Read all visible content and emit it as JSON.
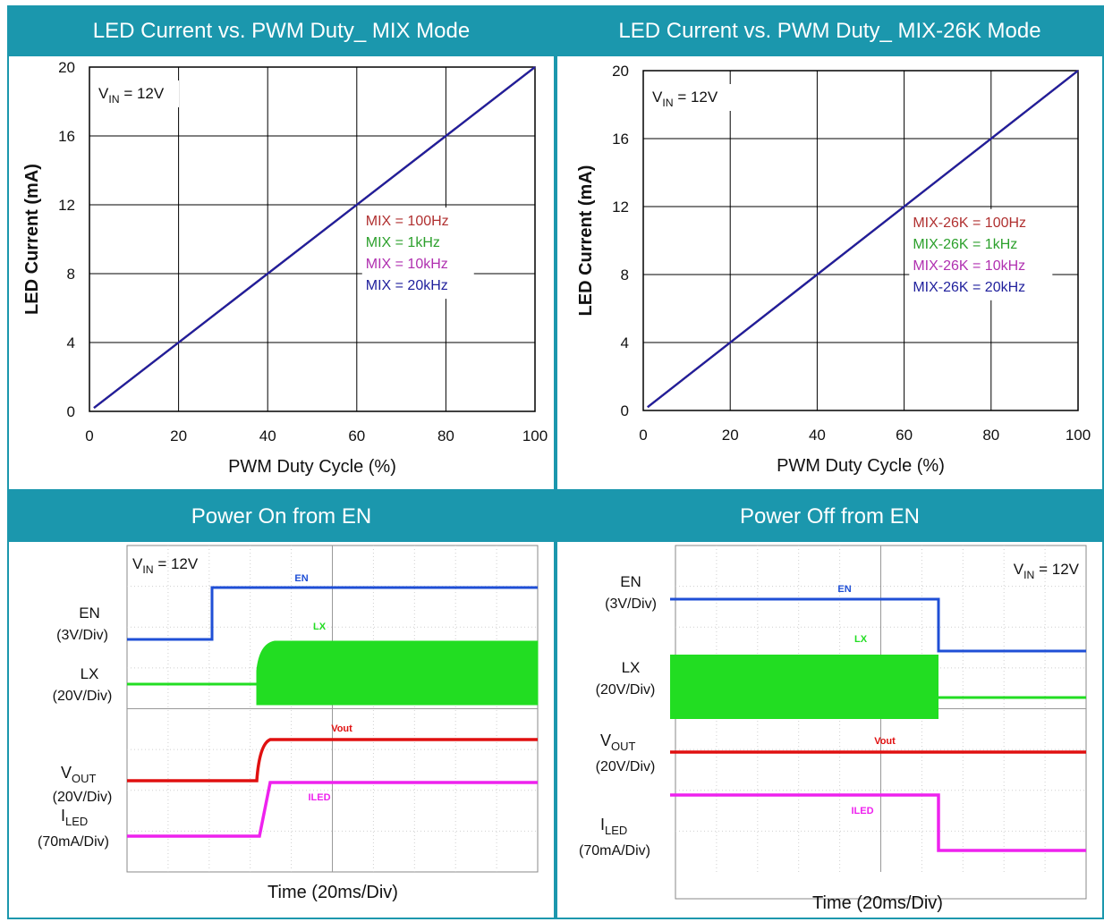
{
  "panels": {
    "tl": {
      "title": "LED Current vs. PWM Duty_ MIX Mode"
    },
    "tr": {
      "title": "LED Current vs. PWM Duty_ MIX-26K Mode"
    },
    "bl": {
      "title": "Power On from EN"
    },
    "br": {
      "title": "Power Off from EN"
    }
  },
  "chart_data": [
    {
      "type": "line",
      "title": "LED Current vs. PWM Duty_ MIX Mode",
      "xlabel": "PWM Duty Cycle (%)",
      "ylabel": "LED Current (mA)",
      "xlim": [
        0,
        100
      ],
      "ylim": [
        0,
        20
      ],
      "xticks": [
        0,
        20,
        40,
        60,
        80,
        100
      ],
      "yticks": [
        0,
        4,
        8,
        12,
        16,
        20
      ],
      "grid": true,
      "annotation": {
        "main": "V",
        "sub": "IN",
        "rest": " = 12V"
      },
      "legend_placement": "center-right",
      "series": [
        {
          "name": "MIX = 100Hz",
          "color": "#b03030",
          "x": [
            1,
            100
          ],
          "y": [
            0.2,
            20
          ]
        },
        {
          "name": "MIX = 1kHz",
          "color": "#2ca02c",
          "x": [
            1,
            100
          ],
          "y": [
            0.2,
            20
          ]
        },
        {
          "name": "MIX = 10kHz",
          "color": "#b030b0",
          "x": [
            1,
            100
          ],
          "y": [
            0.2,
            20
          ]
        },
        {
          "name": "MIX = 20kHz",
          "color": "#1f1f9c",
          "x": [
            1,
            100
          ],
          "y": [
            0.2,
            20
          ]
        }
      ]
    },
    {
      "type": "line",
      "title": "LED Current vs. PWM Duty_ MIX-26K Mode",
      "xlabel": "PWM Duty Cycle (%)",
      "ylabel": "LED Current (mA)",
      "xlim": [
        0,
        100
      ],
      "ylim": [
        0,
        20
      ],
      "xticks": [
        0,
        20,
        40,
        60,
        80,
        100
      ],
      "yticks": [
        0,
        4,
        8,
        12,
        16,
        20
      ],
      "grid": true,
      "annotation": {
        "main": "V",
        "sub": "IN",
        "rest": " = 12V"
      },
      "legend_placement": "center-right",
      "series": [
        {
          "name": "MIX-26K = 100Hz",
          "color": "#b03030",
          "x": [
            1,
            100
          ],
          "y": [
            0.2,
            20
          ]
        },
        {
          "name": "MIX-26K = 1kHz",
          "color": "#2ca02c",
          "x": [
            1,
            100
          ],
          "y": [
            0.2,
            20
          ]
        },
        {
          "name": "MIX-26K = 10kHz",
          "color": "#b030b0",
          "x": [
            1,
            100
          ],
          "y": [
            0.2,
            20
          ]
        },
        {
          "name": "MIX-26K = 20kHz",
          "color": "#1f1f9c",
          "x": [
            1,
            100
          ],
          "y": [
            0.2,
            20
          ]
        }
      ]
    }
  ],
  "scopes": {
    "on": {
      "xlabel": "Time (20ms/Div)",
      "vin": {
        "main": "V",
        "sub": "IN",
        "rest": " = 12V"
      },
      "labels": {
        "en": "EN",
        "en_scale": "(3V/Div)",
        "lx": "LX",
        "lx_scale": "(20V/Div)",
        "vout_main": "V",
        "vout_sub": "OUT",
        "vout_scale": "(20V/Div)",
        "iled_main": "I",
        "iled_sub": "LED",
        "iled_scale": "(70mA/Div)"
      },
      "traces": {
        "en": "EN",
        "lx": "LX",
        "vout": "Vout",
        "iled": "ILED"
      },
      "colors": {
        "en": "#1f4fd6",
        "lx": "#22dd22",
        "vout": "#e01010",
        "iled": "#ee22ee"
      }
    },
    "off": {
      "xlabel": "Time (20ms/Div)",
      "vin": {
        "main": "V",
        "sub": "IN",
        "rest": " = 12V"
      },
      "labels": {
        "en": "EN",
        "en_scale": "(3V/Div)",
        "lx": "LX",
        "lx_scale": "(20V/Div)",
        "vout_main": "V",
        "vout_sub": "OUT",
        "vout_scale": "(20V/Div)",
        "iled_main": "I",
        "iled_sub": "LED",
        "iled_scale": "(70mA/Div)"
      },
      "traces": {
        "en": "EN",
        "lx": "LX",
        "vout": "Vout",
        "iled": "ILED"
      },
      "colors": {
        "en": "#1f4fd6",
        "lx": "#22dd22",
        "vout": "#e01010",
        "iled": "#ee22ee"
      }
    }
  },
  "colors": {
    "header_bg": "#1b97ad",
    "header_text": "#ffffff"
  }
}
